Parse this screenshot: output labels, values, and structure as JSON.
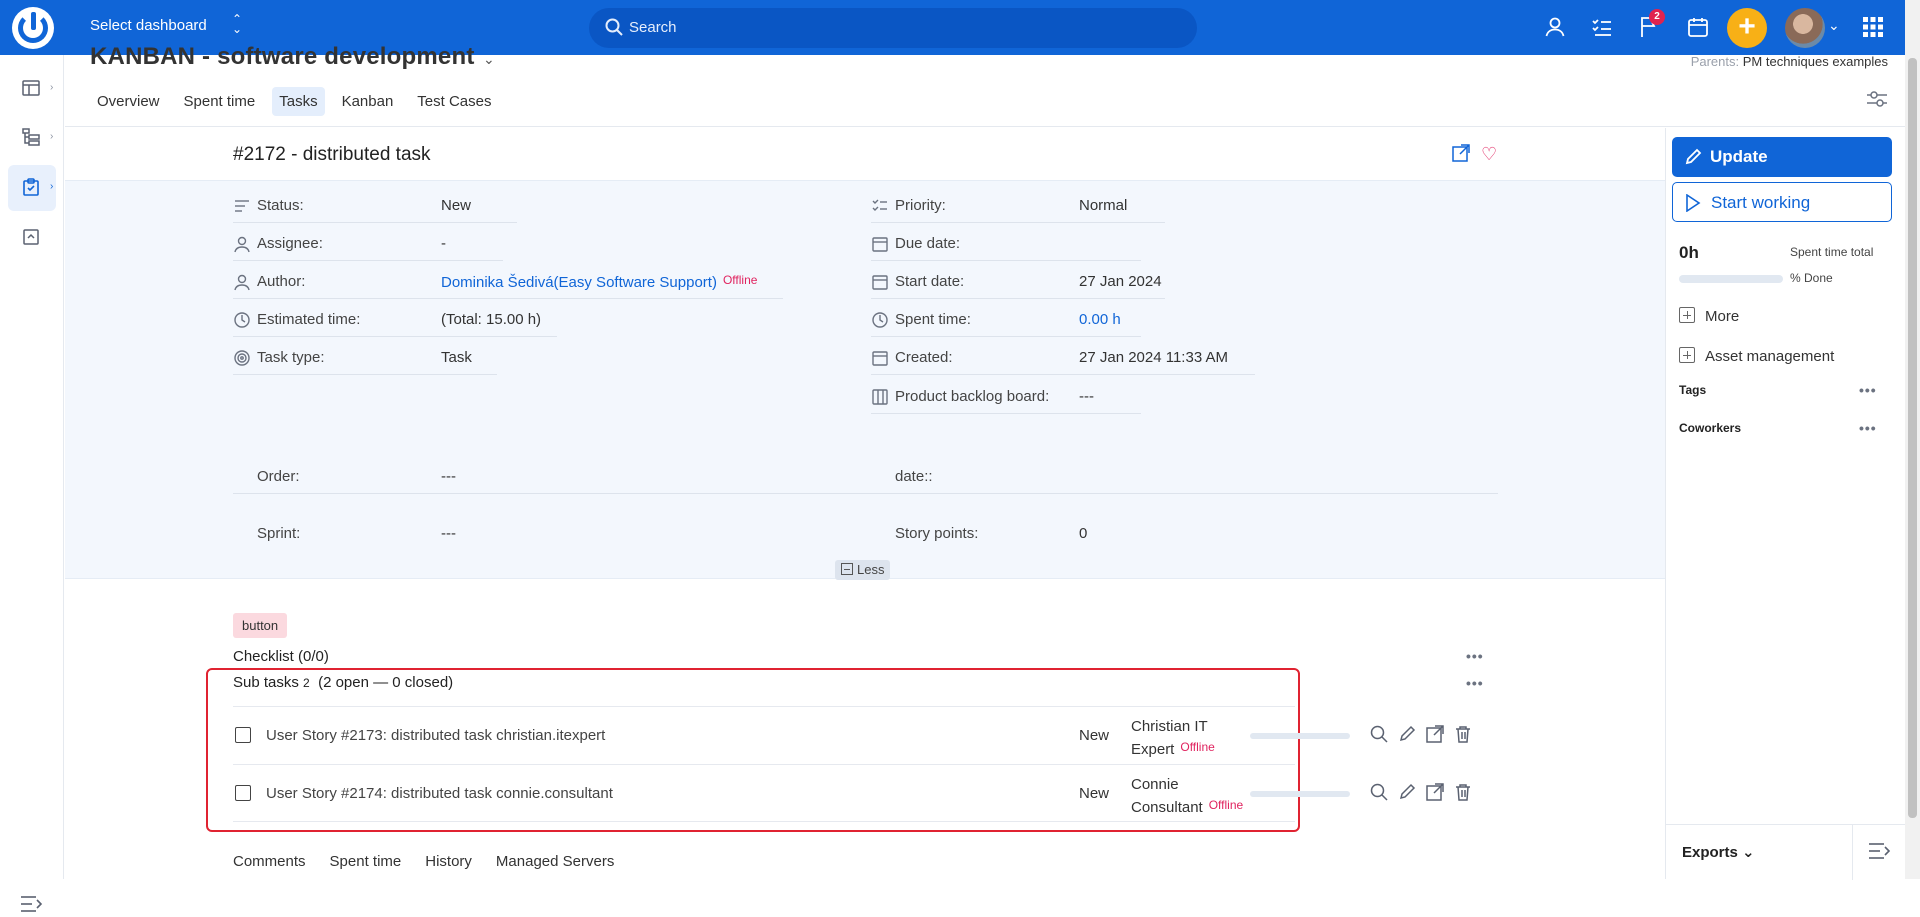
{
  "topbar": {
    "dashboard_label": "Select dashboard",
    "search_placeholder": "Search",
    "notifications_count": "2"
  },
  "project": {
    "title": "KANBAN - software development",
    "parents_label": "Parents:",
    "parents_value": "PM techniques examples",
    "tabs": [
      "Overview",
      "Spent time",
      "Tasks",
      "Kanban",
      "Test Cases"
    ],
    "active_tab": "Tasks"
  },
  "task": {
    "title": "#2172 - distributed task",
    "left_attrs": [
      {
        "label": "Status:",
        "value": "New",
        "icon": "status-icon"
      },
      {
        "label": "Assignee:",
        "value": "-",
        "icon": "user-icon"
      },
      {
        "label": "Author:",
        "value": "Dominika Šedivá(Easy Software Support)",
        "status": "Offline",
        "icon": "user-icon"
      },
      {
        "label": "Estimated time:",
        "value": "(Total: 15.00 h)",
        "icon": "clock-icon"
      },
      {
        "label": "Task type:",
        "value": "Task",
        "icon": "target-icon"
      }
    ],
    "right_attrs": [
      {
        "label": "Priority:",
        "value": "Normal",
        "icon": "priority-icon"
      },
      {
        "label": "Due date:",
        "value": "",
        "icon": "calendar-icon"
      },
      {
        "label": "Start date:",
        "value": "27 Jan 2024",
        "icon": "calendar-icon"
      },
      {
        "label": "Spent time:",
        "value": "0.00 h",
        "icon": "clock-icon"
      },
      {
        "label": "Created:",
        "value": "27 Jan 2024 11:33 AM",
        "icon": "calendar-icon"
      },
      {
        "label": "Product backlog board:",
        "value": "---",
        "icon": "board-icon"
      }
    ],
    "custom": {
      "order_label": "Order:",
      "order_value": "---",
      "date_label": "date::",
      "date_value": "",
      "sprint_label": "Sprint:",
      "sprint_value": "---",
      "points_label": "Story points:",
      "points_value": "0"
    },
    "less_label": "Less",
    "button_label": "button",
    "checklist_label": "Checklist (0/0)",
    "subtasks": {
      "title": "Sub tasks",
      "count": "2",
      "summary": "(2 open — 0 closed)",
      "rows": [
        {
          "name": "User Story #2173: distributed task christian.itexpert",
          "status": "New",
          "assignee_line1": "Christian IT",
          "assignee_line2": "Expert",
          "presence": "Offline",
          "progress": 0
        },
        {
          "name": "User Story #2174: distributed task connie.consultant",
          "status": "New",
          "assignee_line1": "Connie",
          "assignee_line2": "Consultant",
          "presence": "Offline",
          "progress": 0
        }
      ]
    },
    "bottom_tabs": [
      "Comments",
      "Spent time",
      "History",
      "Managed Servers"
    ]
  },
  "sidebar": {
    "update_label": "Update",
    "start_label": "Start working",
    "hours": "0h",
    "spent_total_label": "Spent time total",
    "done_label": "% Done",
    "done_value": 0,
    "more_label": "More",
    "asset_label": "Asset management",
    "tags_label": "Tags",
    "coworkers_label": "Coworkers",
    "exports_label": "Exports"
  },
  "colors": {
    "brand": "#1065d7",
    "accent_add": "#f8b016",
    "offline": "#e0235f",
    "highlight_border": "#e02331"
  }
}
